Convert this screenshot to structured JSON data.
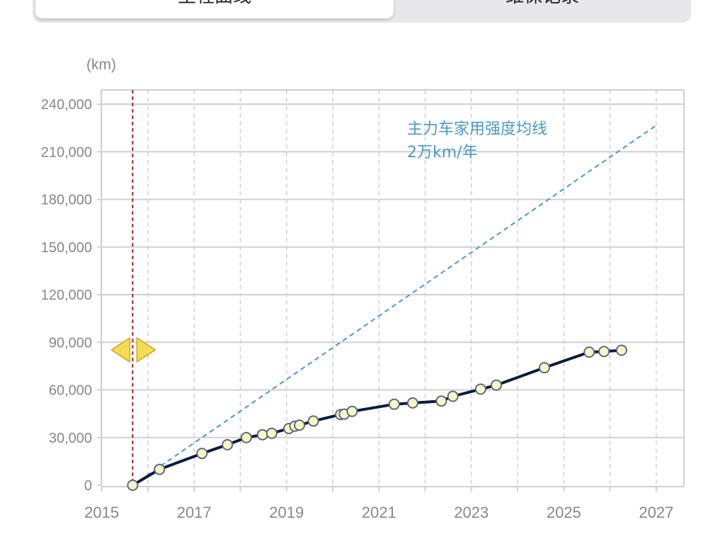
{
  "tabs": [
    {
      "label": "里程曲线",
      "active": true
    },
    {
      "label": "维保记录",
      "active": false
    }
  ],
  "colors": {
    "line": "#0d1b3e",
    "point_fill": "#fbf7c4",
    "reference": "#4a9ac4",
    "marker": "#a02020",
    "handle": "#f5dc55",
    "grid": "#d0d0d0",
    "axis_text": "#888888"
  },
  "chart_data": {
    "type": "line",
    "y_unit": "(km)",
    "xlim": [
      2014.99,
      2027.6
    ],
    "ylim": [
      0,
      240000
    ],
    "x_ticks": [
      2015,
      2017,
      2019,
      2021,
      2023,
      2025,
      2027
    ],
    "y_ticks": [
      0,
      30000,
      60000,
      90000,
      120000,
      150000,
      180000,
      210000,
      240000
    ],
    "y_tick_labels": [
      "0",
      "30,000",
      "60,000",
      "90,000",
      "120,000",
      "150,000",
      "180,000",
      "210,000",
      "240,000"
    ],
    "grid": true,
    "series": [
      {
        "kind": "mileage",
        "points": [
          [
            2015.67,
            0
          ],
          [
            2016.25,
            10000
          ],
          [
            2017.17,
            20000
          ],
          [
            2017.72,
            25500
          ],
          [
            2018.13,
            30000
          ],
          [
            2018.48,
            31800
          ],
          [
            2018.68,
            32700
          ],
          [
            2019.05,
            35700
          ],
          [
            2019.18,
            37200
          ],
          [
            2019.28,
            37800
          ],
          [
            2019.58,
            40400
          ],
          [
            2020.17,
            44500
          ],
          [
            2020.25,
            44800
          ],
          [
            2020.42,
            46500
          ],
          [
            2021.33,
            51000
          ],
          [
            2021.73,
            51800
          ],
          [
            2022.35,
            53000
          ],
          [
            2022.6,
            56000
          ],
          [
            2023.2,
            60500
          ],
          [
            2023.54,
            63000
          ],
          [
            2024.58,
            74000
          ],
          [
            2025.55,
            83800
          ],
          [
            2025.87,
            84200
          ],
          [
            2026.25,
            85000
          ]
        ]
      },
      {
        "kind": "reference",
        "name": "主力车家用强度均线",
        "label_lines": [
          "主力车家用强度均线",
          "2万km/年"
        ],
        "points": [
          [
            2015.67,
            0
          ],
          [
            2027.0,
            226600
          ]
        ]
      }
    ],
    "marker_x": 2015.67
  }
}
